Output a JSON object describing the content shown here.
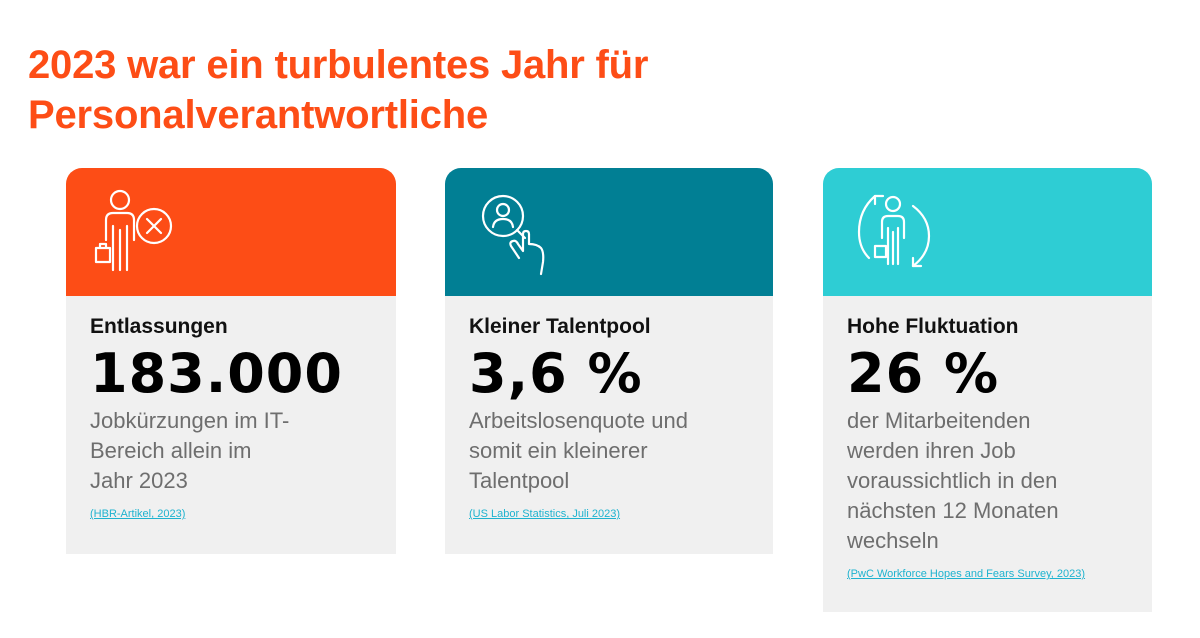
{
  "title": {
    "line1": "2023 war ein turbulentes Jahr für",
    "line2": "Personalverantwortliche"
  },
  "colors": {
    "accent": "#fd4d16",
    "teal": "#017f94",
    "turquoise": "#2ecdd4",
    "card_bg": "#f0f0f0"
  },
  "cards": [
    {
      "icon": "person-briefcase-x-icon",
      "label": "Entlassungen",
      "value": "183.000",
      "desc_lines": [
        "Jobkürzungen im IT-",
        "Bereich allein im",
        "Jahr 2023"
      ],
      "source": "(HBR-Artikel, 2023)"
    },
    {
      "icon": "magnifier-person-hand-icon",
      "label": "Kleiner Talentpool",
      "value": "3,6 %",
      "desc_lines": [
        "Arbeitslosenquote und",
        "somit ein kleinerer",
        "Talentpool"
      ],
      "source": "(US Labor Statistics, Juli 2023)"
    },
    {
      "icon": "person-circular-arrows-icon",
      "label": "Hohe Fluktuation",
      "value": "26 %",
      "desc_lines": [
        "der Mitarbeitenden",
        "werden ihren Job",
        "voraussichtlich in den",
        "nächsten 12 Monaten",
        "wechseln"
      ],
      "source": "(PwC Workforce Hopes and Fears Survey, 2023)"
    }
  ]
}
